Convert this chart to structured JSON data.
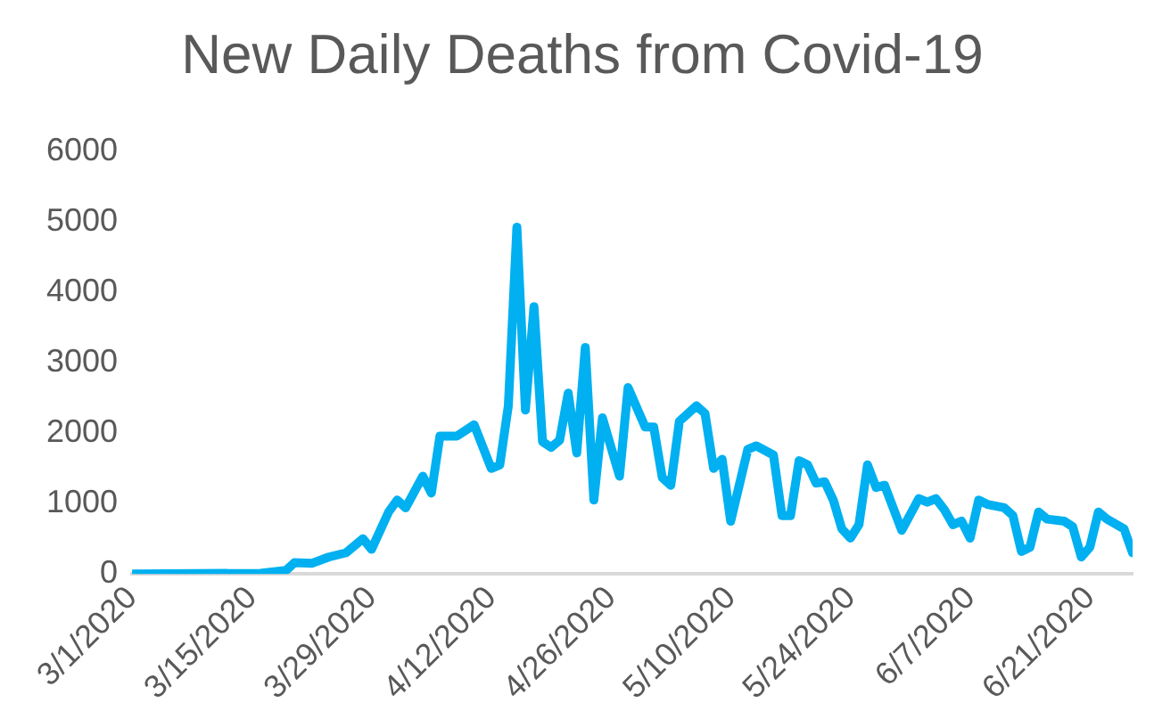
{
  "chart_data": {
    "type": "line",
    "title": "New Daily Deaths from Covid-19",
    "x": [
      "2020-03-01",
      "2020-03-16",
      "2020-03-19",
      "2020-03-20",
      "2020-03-22",
      "2020-03-24",
      "2020-03-26",
      "2020-03-28",
      "2020-03-29",
      "2020-03-31",
      "2020-04-01",
      "2020-04-02",
      "2020-04-04",
      "2020-04-05",
      "2020-04-06",
      "2020-04-08",
      "2020-04-10",
      "2020-04-12",
      "2020-04-13",
      "2020-04-14",
      "2020-04-15",
      "2020-04-16",
      "2020-04-17",
      "2020-04-18",
      "2020-04-19",
      "2020-04-20",
      "2020-04-21",
      "2020-04-22",
      "2020-04-23",
      "2020-04-24",
      "2020-04-25",
      "2020-04-27",
      "2020-04-28",
      "2020-04-30",
      "2020-05-01",
      "2020-05-02",
      "2020-05-03",
      "2020-05-04",
      "2020-05-06",
      "2020-05-07",
      "2020-05-08",
      "2020-05-09",
      "2020-05-10",
      "2020-05-12",
      "2020-05-13",
      "2020-05-15",
      "2020-05-16",
      "2020-05-17",
      "2020-05-18",
      "2020-05-19",
      "2020-05-20",
      "2020-05-21",
      "2020-05-22",
      "2020-05-23",
      "2020-05-24",
      "2020-05-25",
      "2020-05-26",
      "2020-05-27",
      "2020-05-28",
      "2020-05-30",
      "2020-06-01",
      "2020-06-02",
      "2020-06-03",
      "2020-06-04",
      "2020-06-05",
      "2020-06-06",
      "2020-06-07",
      "2020-06-08",
      "2020-06-09",
      "2020-06-11",
      "2020-06-12",
      "2020-06-13",
      "2020-06-14",
      "2020-06-15",
      "2020-06-16",
      "2020-06-18",
      "2020-06-19",
      "2020-06-20",
      "2020-06-21",
      "2020-06-22",
      "2020-06-23",
      "2020-06-25",
      "2020-06-26"
    ],
    "series": [
      {
        "color": "#00b0f0",
        "values": [
          0,
          10,
          50,
          160,
          150,
          240,
          300,
          500,
          350,
          880,
          1050,
          940,
          1390,
          1150,
          1960,
          1960,
          2120,
          1500,
          1550,
          2390,
          4930,
          2330,
          3800,
          1880,
          1800,
          1900,
          2570,
          1720,
          3220,
          1050,
          2220,
          1390,
          2650,
          2090,
          2090,
          1370,
          1260,
          2170,
          2390,
          2280,
          1500,
          1630,
          750,
          1770,
          1820,
          1690,
          830,
          830,
          1610,
          1550,
          1290,
          1310,
          1050,
          640,
          510,
          700,
          1550,
          1230,
          1260,
          620,
          1070,
          1020,
          1070,
          910,
          700,
          750,
          510,
          1050,
          990,
          940,
          830,
          320,
          380,
          880,
          780,
          750,
          670,
          240,
          380,
          880,
          780,
          640,
          300
        ]
      }
    ],
    "xlim": [
      "2020-03-01",
      "2020-06-26"
    ],
    "xticks": [
      {
        "value": "2020-03-01",
        "label": "3/1/2020"
      },
      {
        "value": "2020-03-15",
        "label": "3/15/2020"
      },
      {
        "value": "2020-03-29",
        "label": "3/29/2020"
      },
      {
        "value": "2020-04-12",
        "label": "4/12/2020"
      },
      {
        "value": "2020-04-26",
        "label": "4/26/2020"
      },
      {
        "value": "2020-05-10",
        "label": "5/10/2020"
      },
      {
        "value": "2020-05-24",
        "label": "5/24/2020"
      },
      {
        "value": "2020-06-07",
        "label": "6/7/2020"
      },
      {
        "value": "2020-06-21",
        "label": "6/21/2020"
      }
    ],
    "ylim": [
      0,
      6000
    ],
    "yticks": [
      0,
      1000,
      2000,
      3000,
      4000,
      5000,
      6000
    ],
    "grid": false,
    "legend": false,
    "marker": "none",
    "line_style": "solid"
  }
}
